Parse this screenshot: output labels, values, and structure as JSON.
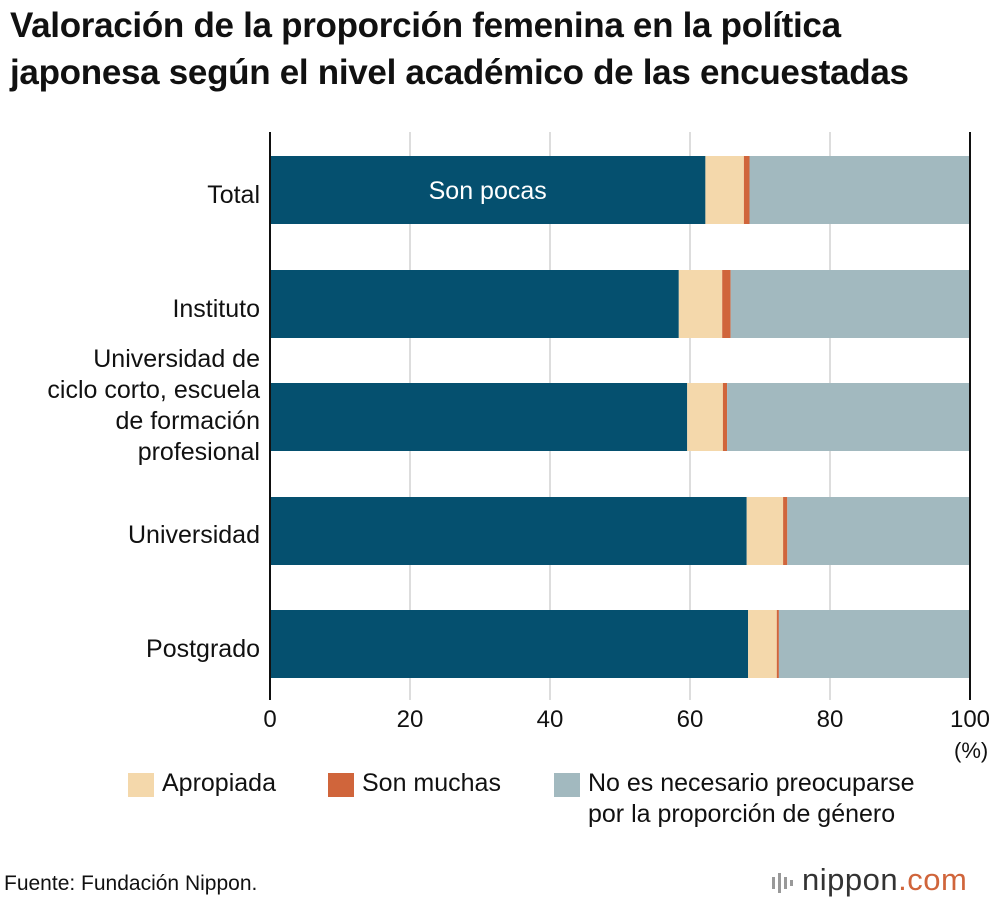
{
  "title_lines": [
    "Valoración de la proporción femenina en la política",
    "japonesa según el nivel académico de las encuestadas"
  ],
  "source": "Fuente: Fundación Nippon.",
  "logo": {
    "main": "nippon",
    "suffix": ".com"
  },
  "colors": {
    "son_pocas": "#05506f",
    "apropiada": "#f4d8ab",
    "son_muchas": "#d0653b",
    "no_necesario": "#a2b9bf",
    "gridline": "#bbbbbb",
    "axis": "#111111",
    "logo_suffix": "#d0653b"
  },
  "chart_data": {
    "type": "bar",
    "orientation": "horizontal",
    "stacked": true,
    "title": "Valoración de la proporción femenina en la política japonesa según el nivel académico de las encuestadas",
    "categories": [
      [
        "Total"
      ],
      [
        "Instituto"
      ],
      [
        "Universidad de",
        "ciclo corto, escuela",
        "de formación",
        "profesional"
      ],
      [
        "Universidad"
      ],
      [
        "Postgrado"
      ]
    ],
    "series": [
      {
        "name": "Son pocas",
        "color_key": "son_pocas",
        "values": [
          62.2,
          58.4,
          59.6,
          68.1,
          68.3
        ]
      },
      {
        "name": "Apropiada",
        "color_key": "apropiada",
        "values": [
          5.5,
          6.2,
          5.1,
          5.2,
          4.1
        ]
      },
      {
        "name": "Son muchas",
        "color_key": "son_muchas",
        "values": [
          0.8,
          1.2,
          0.6,
          0.6,
          0.3
        ]
      },
      {
        "name": "No es necesario preocuparse por la proporción de género",
        "color_key": "no_necesario",
        "values": [
          31.5,
          34.2,
          34.7,
          26.1,
          27.3
        ]
      }
    ],
    "inline_label": {
      "series": "Son pocas",
      "category_index": 0,
      "text": "Son pocas"
    },
    "x_ticks": [
      "0",
      "20",
      "40",
      "60",
      "80",
      "100"
    ],
    "x_unit": "(%)",
    "xlim": [
      0,
      100
    ],
    "grid": true,
    "legend": {
      "position": "bottom",
      "items": [
        {
          "label_lines": [
            "Apropiada"
          ],
          "color_key": "apropiada"
        },
        {
          "label_lines": [
            "Son muchas"
          ],
          "color_key": "son_muchas"
        },
        {
          "label_lines": [
            "No es necesario preocuparse",
            "por la proporción de género"
          ],
          "color_key": "no_necesario"
        }
      ]
    }
  }
}
